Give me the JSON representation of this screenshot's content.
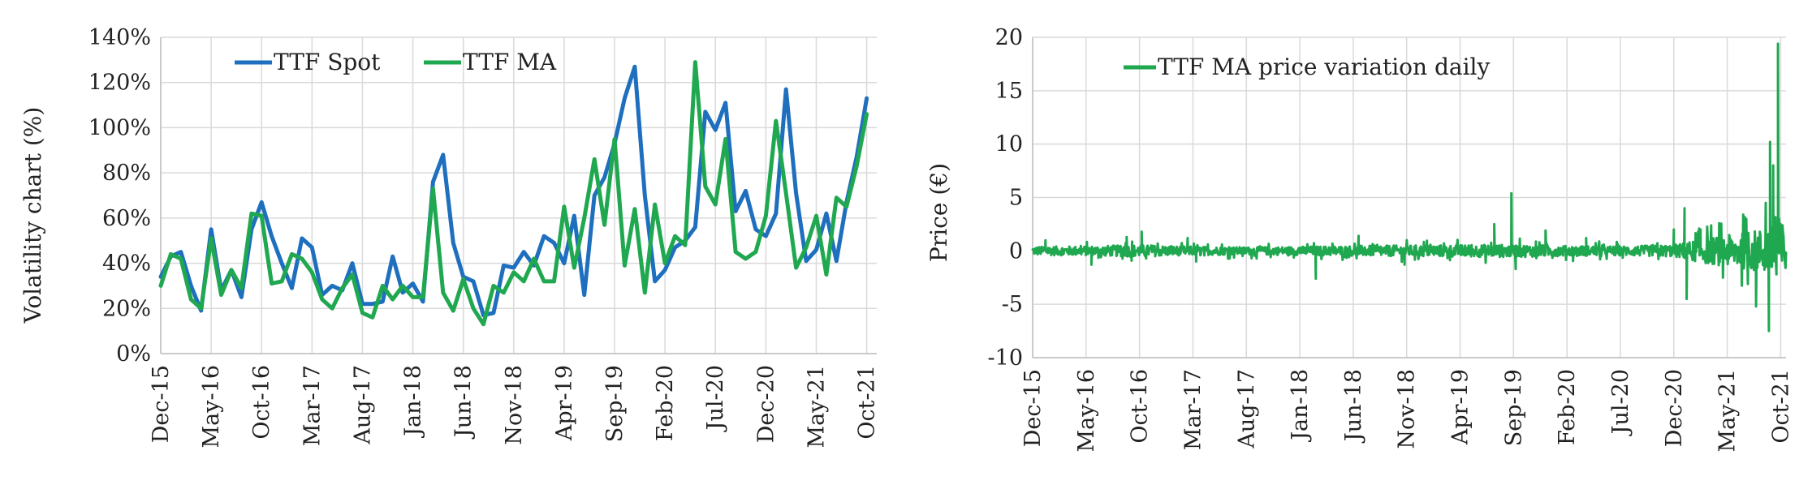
{
  "chart_data": [
    {
      "type": "line",
      "ylabel": "Volatility chart (%)",
      "xlabel": "",
      "ylim": [
        0,
        140
      ],
      "y_tick_labels": [
        "0%",
        "20%",
        "40%",
        "60%",
        "80%",
        "100%",
        "120%",
        "140%"
      ],
      "y_tick_values": [
        0,
        20,
        40,
        60,
        80,
        100,
        120,
        140
      ],
      "x_tick_labels": [
        "Dec-15",
        "May-16",
        "Oct-16",
        "Mar-17",
        "Aug-17",
        "Jan-18",
        "Jun-18",
        "Nov-18",
        "Apr-19",
        "Sep-19",
        "Feb-20",
        "Jul-20",
        "Dec-20",
        "May-21",
        "Oct-21"
      ],
      "x_tick_months": [
        0,
        5,
        10,
        15,
        20,
        25,
        30,
        35,
        40,
        45,
        50,
        55,
        60,
        65,
        70
      ],
      "x_range_months": [
        0,
        71
      ],
      "legend_position": "top-left",
      "grid": true,
      "series": [
        {
          "name": "TTF Spot",
          "color": "#1f6fbf",
          "x_months": [
            0,
            1,
            2,
            3,
            4,
            5,
            6,
            7,
            8,
            9,
            10,
            11,
            12,
            13,
            14,
            15,
            16,
            17,
            18,
            19,
            20,
            21,
            22,
            23,
            24,
            25,
            26,
            27,
            28,
            29,
            30,
            31,
            32,
            33,
            34,
            35,
            36,
            37,
            38,
            39,
            40,
            41,
            42,
            43,
            44,
            45,
            46,
            47,
            48,
            49,
            50,
            51,
            52,
            53,
            54,
            55,
            56,
            57,
            58,
            59,
            60,
            61,
            62,
            63,
            64,
            65,
            66,
            67,
            68,
            69,
            70
          ],
          "values": [
            34,
            43,
            45,
            30,
            19,
            55,
            28,
            37,
            25,
            55,
            67,
            52,
            40,
            29,
            51,
            47,
            26,
            30,
            28,
            40,
            22,
            22,
            23,
            43,
            27,
            31,
            23,
            76,
            88,
            49,
            34,
            32,
            17,
            18,
            39,
            38,
            45,
            39,
            52,
            49,
            40,
            61,
            26,
            70,
            78,
            93,
            113,
            127,
            70,
            32,
            37,
            47,
            50,
            56,
            107,
            99,
            111,
            63,
            72,
            55,
            52,
            62,
            117,
            71,
            41,
            46,
            62,
            41,
            67,
            87,
            113
          ]
        },
        {
          "name": "TTF MA",
          "color": "#1fa84f",
          "x_months": [
            0,
            1,
            2,
            3,
            4,
            5,
            6,
            7,
            8,
            9,
            10,
            11,
            12,
            13,
            14,
            15,
            16,
            17,
            18,
            19,
            20,
            21,
            22,
            23,
            24,
            25,
            26,
            27,
            28,
            29,
            30,
            31,
            32,
            33,
            34,
            35,
            36,
            37,
            38,
            39,
            40,
            41,
            42,
            43,
            44,
            45,
            46,
            47,
            48,
            49,
            50,
            51,
            52,
            53,
            54,
            55,
            56,
            57,
            58,
            59,
            60,
            61,
            62,
            63,
            64,
            65,
            66,
            67,
            68,
            69,
            70
          ],
          "values": [
            30,
            44,
            42,
            24,
            20,
            51,
            26,
            37,
            29,
            62,
            61,
            31,
            32,
            44,
            42,
            36,
            24,
            20,
            29,
            35,
            18,
            16,
            30,
            24,
            30,
            25,
            25,
            73,
            27,
            19,
            33,
            20,
            13,
            30,
            27,
            36,
            32,
            42,
            32,
            32,
            65,
            38,
            60,
            86,
            57,
            95,
            39,
            64,
            27,
            66,
            40,
            52,
            48,
            129,
            74,
            66,
            95,
            45,
            42,
            45,
            61,
            103,
            71,
            38,
            47,
            61,
            35,
            69,
            65,
            83,
            106
          ]
        }
      ]
    },
    {
      "type": "line",
      "ylabel": "Price (€)",
      "xlabel": "",
      "ylim": [
        -10,
        20
      ],
      "y_tick_labels": [
        "-10",
        "-5",
        "0",
        "5",
        "10",
        "15",
        "20"
      ],
      "y_tick_values": [
        -10,
        -5,
        0,
        5,
        10,
        15,
        20
      ],
      "x_tick_labels": [
        "Dec-15",
        "May-16",
        "Oct-16",
        "Mar-17",
        "Aug-17",
        "Jan-18",
        "Jun-18",
        "Nov-18",
        "Apr-19",
        "Sep-19",
        "Feb-20",
        "Jul-20",
        "Dec-20",
        "May-21",
        "Oct-21"
      ],
      "x_tick_months": [
        0,
        5,
        10,
        15,
        20,
        25,
        30,
        35,
        40,
        45,
        50,
        55,
        60,
        65,
        70
      ],
      "x_range_months": [
        0,
        70.5
      ],
      "legend_position": "top-left",
      "grid": true,
      "series": [
        {
          "name": "TTF MA price variation daily",
          "color": "#1fa84f",
          "amplitude_profile": [
            [
              0,
              0.5
            ],
            [
              5,
              0.55
            ],
            [
              10,
              0.7
            ],
            [
              15,
              0.5
            ],
            [
              20,
              0.45
            ],
            [
              25,
              0.5
            ],
            [
              30,
              0.6
            ],
            [
              35,
              0.65
            ],
            [
              40,
              0.7
            ],
            [
              45,
              0.75
            ],
            [
              50,
              0.6
            ],
            [
              55,
              0.55
            ],
            [
              60,
              0.7
            ],
            [
              63,
              1.5
            ],
            [
              66,
              2.0
            ],
            [
              68,
              2.5
            ],
            [
              70.5,
              3.5
            ]
          ],
          "spikes": [
            [
              1.2,
              1.0
            ],
            [
              5.5,
              -1.3
            ],
            [
              8.8,
              1.3
            ],
            [
              10.2,
              1.8
            ],
            [
              14.5,
              1.2
            ],
            [
              15.3,
              -1.0
            ],
            [
              26.5,
              -2.6
            ],
            [
              30.5,
              1.4
            ],
            [
              34.8,
              -1.3
            ],
            [
              43.2,
              2.5
            ],
            [
              44.8,
              5.4
            ],
            [
              45.2,
              -1.7
            ],
            [
              48.0,
              1.9
            ],
            [
              51.8,
              1.2
            ],
            [
              60.0,
              2.0
            ],
            [
              61.0,
              4.0
            ],
            [
              61.2,
              -4.5
            ],
            [
              62.5,
              2.0
            ],
            [
              64.6,
              -2.5
            ],
            [
              66.5,
              3.4
            ],
            [
              67.7,
              -5.2
            ],
            [
              68.6,
              4.5
            ],
            [
              68.9,
              -7.5
            ],
            [
              69.0,
              10.2
            ],
            [
              69.15,
              -1.5
            ],
            [
              69.3,
              8.0
            ],
            [
              69.5,
              3.0
            ],
            [
              69.6,
              -2.2
            ],
            [
              69.75,
              19.4
            ],
            [
              69.85,
              3.0
            ]
          ]
        }
      ]
    }
  ]
}
